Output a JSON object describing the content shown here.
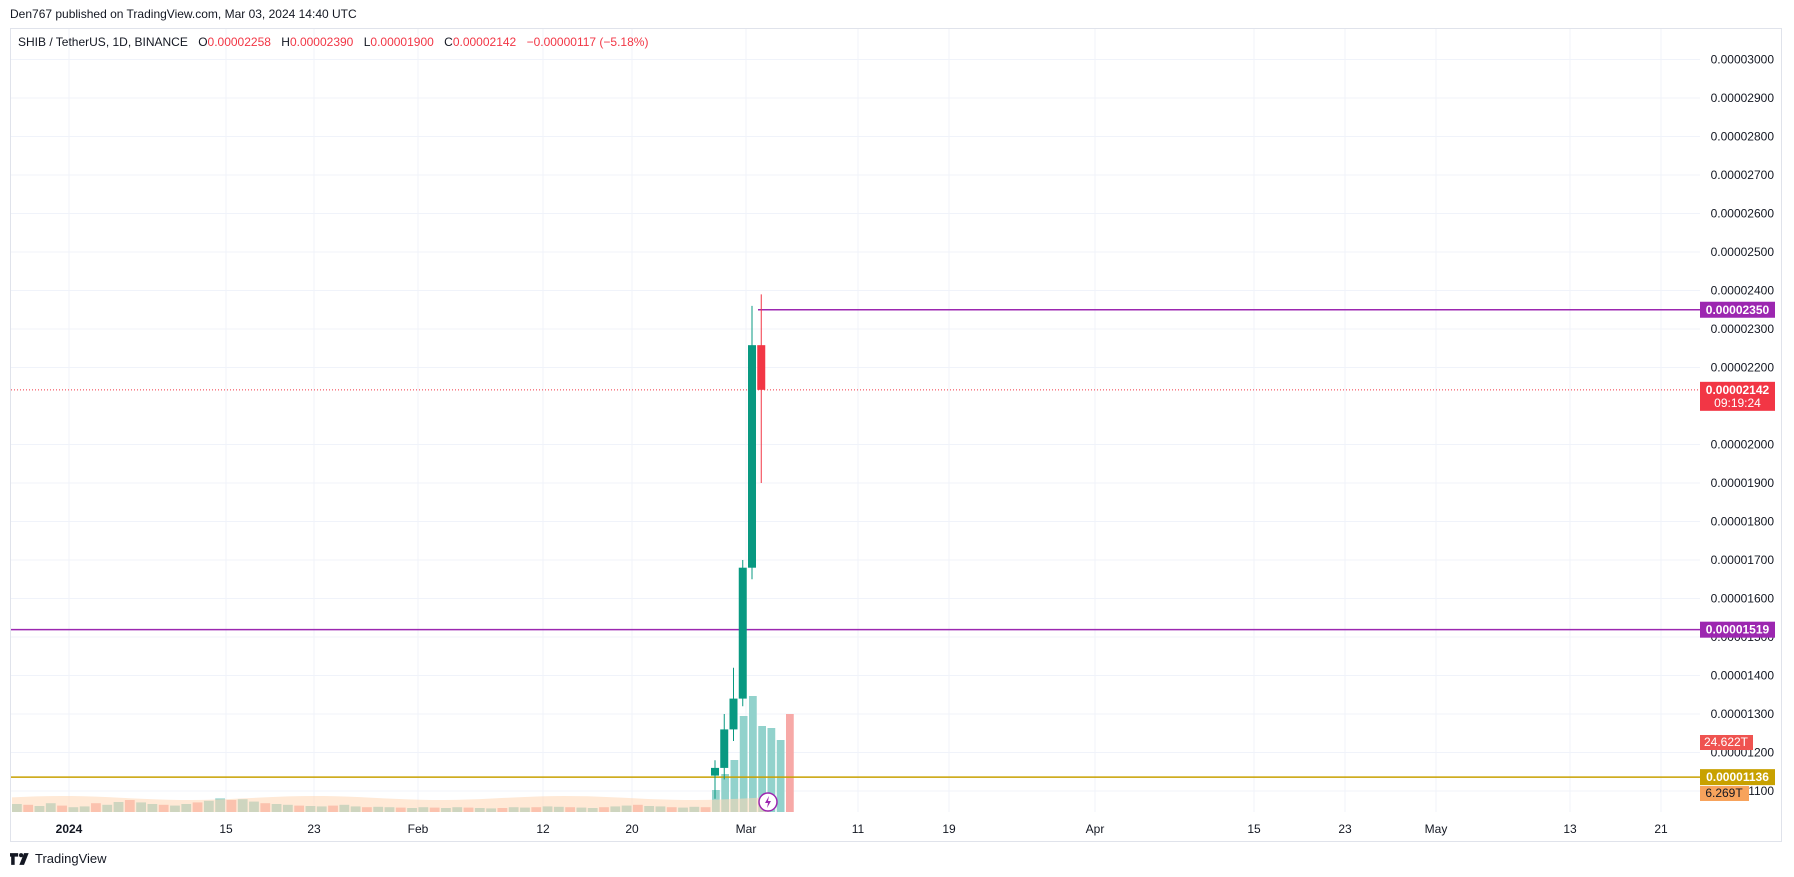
{
  "header": {
    "published": "Den767 published on TradingView.com, Mar 03, 2024 14:40 UTC"
  },
  "legend": {
    "symbol": "SHIB / TetherUS, 1D, BINANCE",
    "open_label": "O",
    "open": "0.00002258",
    "high_label": "H",
    "high": "0.00002390",
    "low_label": "L",
    "low": "0.00001900",
    "close_label": "C",
    "close": "0.00002142",
    "change": "−0.00000117 (−5.18%)"
  },
  "footer": {
    "brand": "TradingView",
    "logo_icon": "tradingview-logo-icon"
  },
  "colors": {
    "up": "#089981",
    "down": "#f23645",
    "volume_up": "#92d2cc",
    "volume_down": "#f7a9a7",
    "level": "#9c27b0",
    "support": "#c8a100",
    "volume_ma": "#ffd7b5",
    "grid": "#f0f3fa"
  },
  "chart_data": {
    "type": "candlestick",
    "y_axis": {
      "ticks": [
        "0.00003000",
        "0.00002900",
        "0.00002800",
        "0.00002700",
        "0.00002600",
        "0.00002500",
        "0.00002400",
        "0.00002300",
        "0.00002200",
        "0.00002000",
        "0.00001900",
        "0.00001800",
        "0.00001700",
        "0.00001600",
        "0.00001500",
        "0.00001400",
        "0.00001300",
        "0.00001200",
        "0.00001100"
      ],
      "range": [
        1.08e-05,
        3.05e-05
      ]
    },
    "x_axis": {
      "ticks": [
        "2024",
        "15",
        "23",
        "Feb",
        "12",
        "20",
        "Mar",
        "11",
        "19",
        "Apr",
        "15",
        "23",
        "May",
        "13",
        "21"
      ]
    },
    "candles": [
      {
        "date": "2024-02-26",
        "o": 1.14e-05,
        "h": 1.18e-05,
        "l": 1.08e-05,
        "c": 1.16e-05
      },
      {
        "date": "2024-02-27",
        "o": 1.16e-05,
        "h": 1.3e-05,
        "l": 1.13e-05,
        "c": 1.26e-05
      },
      {
        "date": "2024-02-28",
        "o": 1.26e-05,
        "h": 1.42e-05,
        "l": 1.23e-05,
        "c": 1.34e-05
      },
      {
        "date": "2024-02-29",
        "o": 1.34e-05,
        "h": 1.7e-05,
        "l": 1.32e-05,
        "c": 1.68e-05
      },
      {
        "date": "2024-03-01",
        "o": 1.68e-05,
        "h": 2.36e-05,
        "l": 1.65e-05,
        "c": 2.258e-05
      },
      {
        "date": "2024-03-02",
        "o": 2.258e-05,
        "h": 2.39e-05,
        "l": 1.9e-05,
        "c": 2.142e-05
      }
    ],
    "volume": {
      "scale_max": "24.622T",
      "ma_value": "6.269T",
      "bars_before_rally": [
        0.2,
        0.18,
        0.15,
        0.22,
        0.16,
        0.12,
        0.14,
        0.22,
        0.18,
        0.25,
        0.3,
        0.24,
        0.2,
        0.18,
        0.16,
        0.2,
        0.24,
        0.28,
        0.34,
        0.3,
        0.32,
        0.26,
        0.22,
        0.2,
        0.18,
        0.16,
        0.15,
        0.14,
        0.16,
        0.18,
        0.14,
        0.12,
        0.13,
        0.12,
        0.11,
        0.1,
        0.12,
        0.11,
        0.1,
        0.12,
        0.11,
        0.1,
        0.09,
        0.1,
        0.12,
        0.11,
        0.12,
        0.14,
        0.13,
        0.12,
        0.11,
        0.1,
        0.12,
        0.14,
        0.16,
        0.18,
        0.15,
        0.14,
        0.12,
        0.11,
        0.13,
        0.12
      ],
      "rally_bars": [
        0.55,
        0.95,
        1.3,
        2.4,
        2.9,
        2.15,
        2.1,
        1.8,
        2.45
      ]
    },
    "levels": [
      {
        "label": "0.00002350",
        "value": 2.35e-05,
        "color": "#9c27b0"
      },
      {
        "label": "0.00001519",
        "value": 1.519e-05,
        "color": "#9c27b0"
      },
      {
        "label": "0.00001136",
        "value": 1.136e-05,
        "color": "#c8a100"
      }
    ],
    "last_price": {
      "label": "0.00002142",
      "value": 2.142e-05,
      "countdown": "09:19:24"
    }
  }
}
